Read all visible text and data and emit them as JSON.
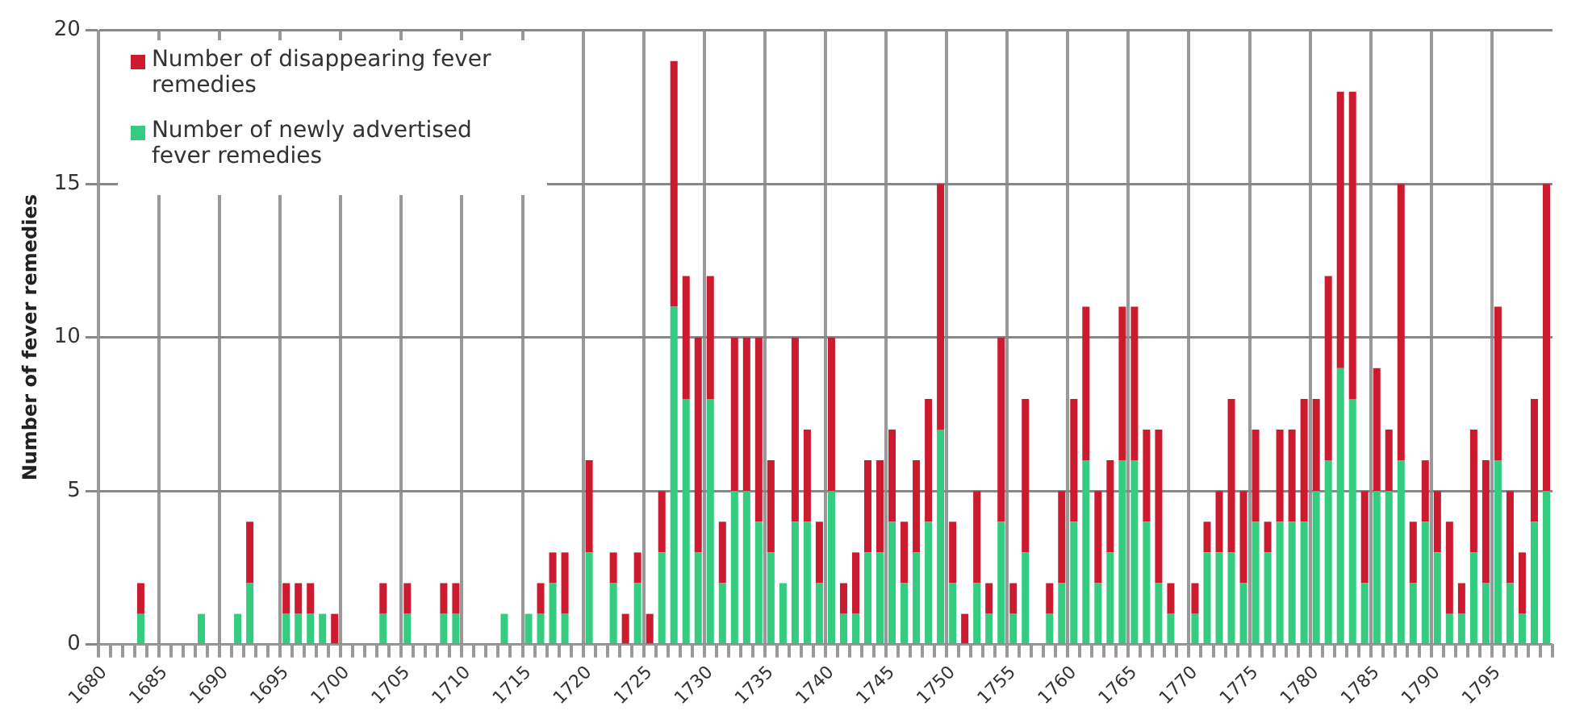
{
  "chart_data": {
    "type": "bar",
    "stacked": true,
    "ylabel": "Number of fever remedies",
    "categories": [
      "1680",
      null,
      null,
      null,
      null,
      "1685",
      null,
      null,
      null,
      null,
      "1690",
      null,
      null,
      null,
      null,
      "1695",
      null,
      null,
      null,
      null,
      "1700",
      null,
      null,
      null,
      null,
      "1705",
      null,
      null,
      null,
      null,
      "1710",
      null,
      null,
      null,
      null,
      "1715",
      null,
      null,
      null,
      null,
      "1720",
      null,
      null,
      null,
      null,
      "1725",
      null,
      null,
      null,
      null,
      "1730",
      null,
      null,
      null,
      null,
      "1735",
      null,
      null,
      null,
      null,
      "1740",
      null,
      null,
      null,
      null,
      "1745",
      null,
      null,
      null,
      null,
      "1750",
      null,
      null,
      null,
      null,
      "1755",
      null,
      null,
      null,
      null,
      "1760",
      null,
      null,
      null,
      null,
      "1765",
      null,
      null,
      null,
      null,
      "1770",
      null,
      null,
      null,
      null,
      "1775",
      null,
      null,
      null,
      null,
      "1780",
      null,
      null,
      null,
      null,
      "1785",
      null,
      null,
      null,
      null,
      "1790",
      null,
      null,
      null,
      null,
      "1795",
      null,
      null,
      null,
      null
    ],
    "series": [
      {
        "name": "Number of newly advertised fever remedies",
        "color": "#33cc80",
        "values": [
          0,
          0,
          0,
          1,
          0,
          0,
          0,
          0,
          1,
          0,
          0,
          1,
          2,
          0,
          0,
          1,
          1,
          1,
          1,
          0,
          0,
          0,
          0,
          1,
          0,
          1,
          0,
          0,
          1,
          1,
          0,
          0,
          0,
          1,
          0,
          1,
          1,
          2,
          1,
          0,
          3,
          0,
          2,
          0,
          2,
          0,
          3,
          11,
          8,
          3,
          8,
          2,
          5,
          5,
          4,
          3,
          2,
          4,
          4,
          2,
          5,
          1,
          1,
          3,
          3,
          4,
          2,
          3,
          4,
          7,
          2,
          0,
          2,
          1,
          4,
          1,
          3,
          0,
          1,
          2,
          4,
          6,
          2,
          3,
          6,
          6,
          4,
          2,
          1,
          0,
          1,
          3,
          3,
          3,
          2,
          4,
          3,
          4,
          4,
          4,
          5,
          6,
          9,
          8,
          2,
          5,
          5,
          6,
          2,
          4,
          3,
          1,
          1,
          3,
          2,
          6,
          2,
          1,
          4,
          5
        ]
      },
      {
        "name": "Number of disappearing fever remedies",
        "color": "#cc1a2e",
        "values": [
          0,
          0,
          0,
          1,
          0,
          0,
          0,
          0,
          0,
          0,
          0,
          0,
          2,
          0,
          0,
          1,
          1,
          1,
          0,
          1,
          0,
          0,
          0,
          1,
          0,
          1,
          0,
          0,
          1,
          1,
          0,
          0,
          0,
          0,
          0,
          0,
          1,
          1,
          2,
          0,
          3,
          0,
          1,
          1,
          1,
          1,
          2,
          8,
          4,
          7,
          4,
          2,
          5,
          5,
          6,
          3,
          0,
          6,
          3,
          2,
          5,
          1,
          2,
          3,
          3,
          3,
          2,
          3,
          4,
          8,
          2,
          1,
          3,
          1,
          6,
          1,
          5,
          0,
          1,
          3,
          4,
          5,
          3,
          3,
          5,
          5,
          3,
          5,
          1,
          0,
          1,
          1,
          2,
          5,
          3,
          3,
          1,
          3,
          3,
          4,
          3,
          6,
          9,
          10,
          3,
          4,
          2,
          9,
          2,
          2,
          2,
          3,
          1,
          4,
          4,
          5,
          3,
          2,
          4,
          10
        ]
      }
    ],
    "ylim": [
      0,
      20
    ],
    "yticks": [
      0,
      5,
      10,
      15,
      20
    ],
    "grid": true,
    "legend": "top left"
  }
}
